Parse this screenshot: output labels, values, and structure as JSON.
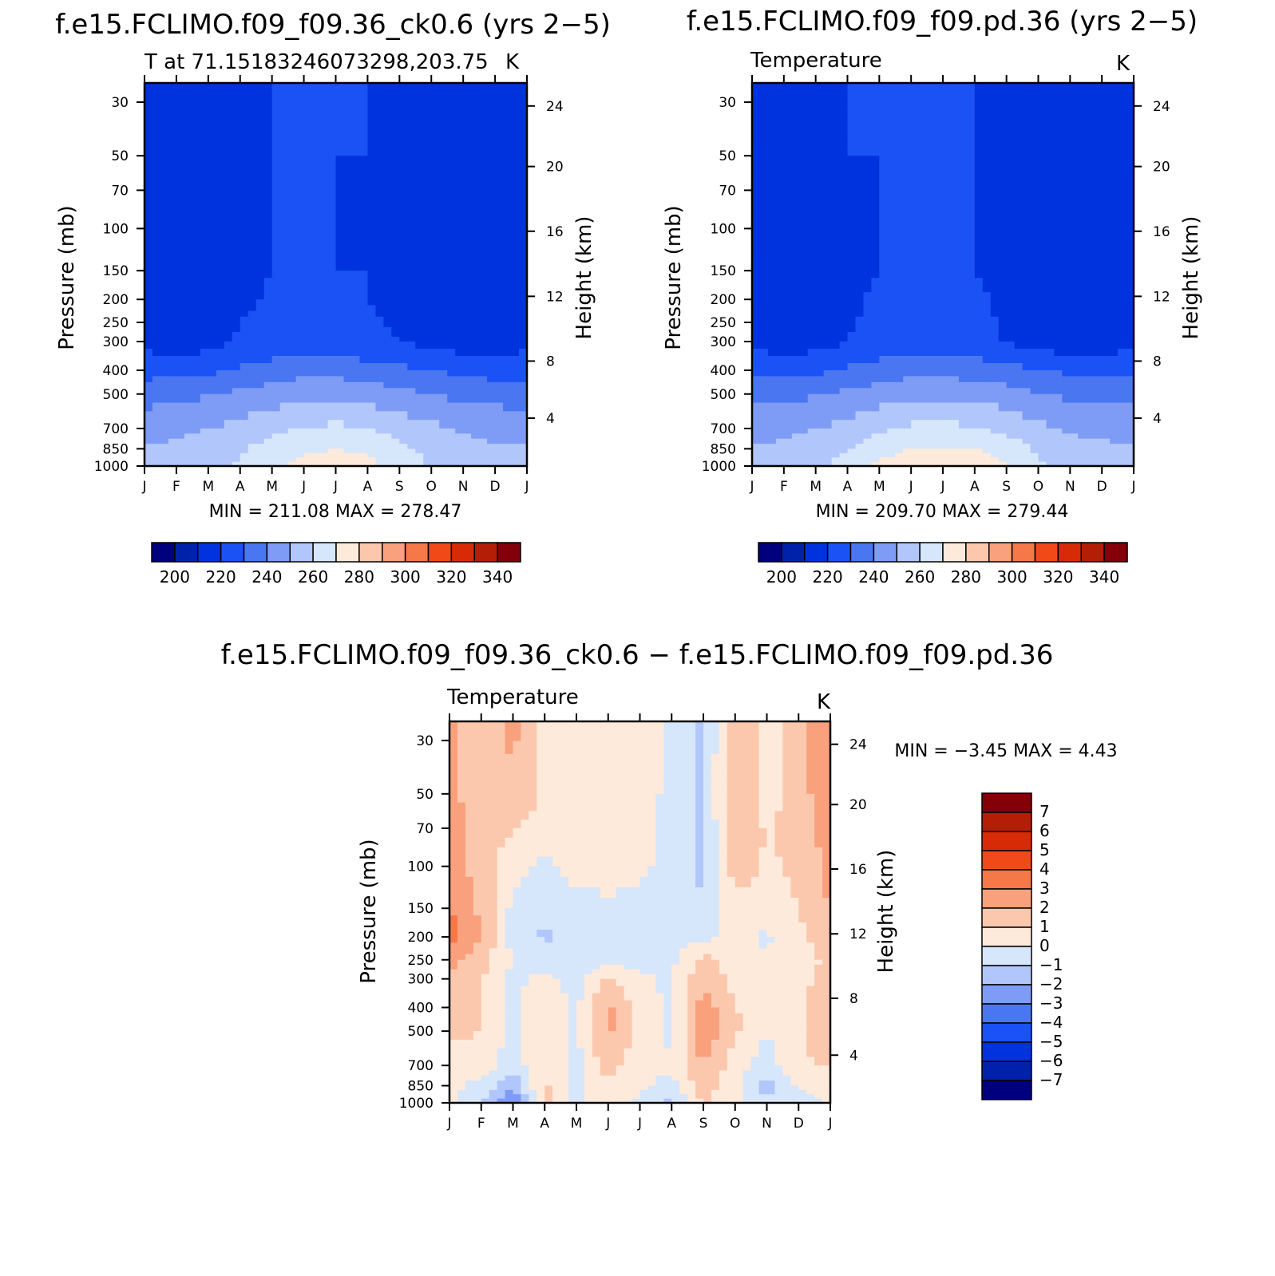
{
  "chart_data": [
    {
      "type": "contour",
      "title": "f.e15.FCLIMO.f09_f09.36_ck0.6 (yrs 2−5)",
      "subtitle_left": "T at 71.15183246073298,203.75",
      "subtitle_right": "K",
      "ylabel": "Pressure (mb)",
      "ylabel_right": "Height (km)",
      "x": [
        "J",
        "F",
        "M",
        "A",
        "M",
        "J",
        "J",
        "A",
        "S",
        "O",
        "N",
        "D",
        "J"
      ],
      "pressure_ticks": [
        30,
        50,
        70,
        100,
        150,
        200,
        250,
        300,
        400,
        500,
        700,
        850,
        1000
      ],
      "height_ticks": [
        4,
        8,
        12,
        16,
        20,
        24
      ],
      "ylim": [
        1000,
        25
      ],
      "minmax_label": "MIN = 211.08 MAX = 278.47",
      "min": 211.08,
      "max": 278.47,
      "levels": [
        200,
        210,
        220,
        230,
        240,
        250,
        260,
        270,
        280,
        290,
        300,
        310,
        320,
        330,
        340
      ],
      "colorbar_labels": [
        "200",
        "220",
        "240",
        "260",
        "280",
        "300",
        "320",
        "340"
      ],
      "palette": [
        "#00007f",
        "#0022aa",
        "#0033dd",
        "#1a52f5",
        "#4a76f2",
        "#7e9cf5",
        "#b1c6fa",
        "#d6e6fb",
        "#feeadb",
        "#fcc8ad",
        "#f9a07c",
        "#f57848",
        "#f04a18",
        "#d92a08",
        "#b41d06",
        "#830008"
      ],
      "field": [
        [
          218,
          212,
          212,
          218,
          220,
          220,
          220,
          220,
          212,
          212,
          212,
          212,
          218
        ],
        [
          218,
          212,
          212,
          218,
          220,
          220,
          220,
          220,
          214,
          212,
          212,
          212,
          218
        ],
        [
          218,
          212,
          212,
          218,
          220,
          220,
          220,
          219,
          214,
          212,
          212,
          212,
          218
        ],
        [
          216,
          212,
          212,
          217,
          220,
          220,
          220,
          219,
          216,
          212,
          212,
          212,
          216
        ],
        [
          216,
          212,
          213,
          218,
          220,
          220,
          220,
          220,
          218,
          214,
          218,
          212,
          216
        ],
        [
          216,
          213,
          213,
          218,
          221,
          221,
          221,
          220,
          218,
          213,
          212,
          212,
          216
        ],
        [
          216,
          213,
          215,
          220,
          222,
          222,
          222,
          221,
          219,
          215,
          213,
          213,
          216
        ],
        [
          217,
          214,
          216,
          221,
          223,
          224,
          224,
          222,
          220,
          216,
          214,
          214,
          217
        ],
        [
          226,
          227,
          228,
          231,
          234,
          236,
          236,
          234,
          232,
          230,
          228,
          226,
          226
        ],
        [
          236,
          237,
          239,
          242,
          245,
          248,
          248,
          246,
          243,
          240,
          237,
          236,
          236
        ],
        [
          246,
          247,
          250,
          253,
          257,
          261,
          262,
          260,
          256,
          252,
          249,
          247,
          246
        ],
        [
          251,
          252,
          255,
          259,
          264,
          268,
          270,
          268,
          263,
          257,
          253,
          251,
          251
        ],
        [
          254,
          254,
          257,
          261,
          268,
          273,
          274,
          273,
          266,
          259,
          255,
          253,
          254
        ]
      ]
    },
    {
      "type": "contour",
      "title": "f.e15.FCLIMO.f09_f09.pd.36 (yrs 2−5)",
      "subtitle_left": "Temperature",
      "subtitle_right": "K",
      "ylabel": "Pressure (mb)",
      "ylabel_right": "Height (km)",
      "x": [
        "J",
        "F",
        "M",
        "A",
        "M",
        "J",
        "J",
        "A",
        "S",
        "O",
        "N",
        "D",
        "J"
      ],
      "pressure_ticks": [
        30,
        50,
        70,
        100,
        150,
        200,
        250,
        300,
        400,
        500,
        700,
        850,
        1000
      ],
      "height_ticks": [
        4,
        8,
        12,
        16,
        20,
        24
      ],
      "ylim": [
        1000,
        25
      ],
      "minmax_label": "MIN = 209.70 MAX = 279.44",
      "min": 209.7,
      "max": 279.44,
      "levels": [
        200,
        210,
        220,
        230,
        240,
        250,
        260,
        270,
        280,
        290,
        300,
        310,
        320,
        330,
        340
      ],
      "colorbar_labels": [
        "200",
        "220",
        "240",
        "260",
        "280",
        "300",
        "320",
        "340"
      ],
      "palette": [
        "#00007f",
        "#0022aa",
        "#0033dd",
        "#1a52f5",
        "#4a76f2",
        "#7e9cf5",
        "#b1c6fa",
        "#d6e6fb",
        "#feeadb",
        "#fcc8ad",
        "#f9a07c",
        "#f57848",
        "#f04a18",
        "#d92a08",
        "#b41d06",
        "#830008"
      ],
      "field": [
        [
          216,
          212,
          212,
          220,
          220,
          220,
          220,
          220,
          216,
          212,
          212,
          212,
          216
        ],
        [
          216,
          212,
          212,
          220,
          220,
          220,
          220,
          220,
          216,
          212,
          212,
          212,
          216
        ],
        [
          216,
          212,
          212,
          219,
          220,
          220,
          220,
          220,
          216,
          212,
          212,
          212,
          216
        ],
        [
          216,
          212,
          213,
          218,
          220,
          220,
          220,
          220,
          217,
          213,
          212,
          212,
          216
        ],
        [
          216,
          212,
          214,
          218,
          220,
          220,
          220,
          220,
          218,
          216,
          213,
          212,
          216
        ],
        [
          216,
          212,
          214,
          219,
          221,
          221,
          221,
          221,
          219,
          215,
          213,
          212,
          216
        ],
        [
          216,
          213,
          215,
          219,
          222,
          222,
          222,
          222,
          219,
          214,
          213,
          213,
          216
        ],
        [
          217,
          214,
          216,
          220,
          223,
          224,
          224,
          223,
          219,
          215,
          214,
          214,
          217
        ],
        [
          227,
          227,
          228,
          231,
          234,
          236,
          236,
          235,
          233,
          230,
          228,
          227,
          227
        ],
        [
          237,
          237,
          239,
          242,
          245,
          248,
          248,
          247,
          244,
          240,
          238,
          237,
          237
        ],
        [
          247,
          247,
          250,
          253,
          258,
          262,
          263,
          261,
          257,
          252,
          249,
          247,
          247
        ],
        [
          251,
          252,
          255,
          260,
          266,
          270,
          271,
          270,
          266,
          258,
          253,
          252,
          251
        ],
        [
          254,
          255,
          258,
          264,
          272,
          276,
          277,
          276,
          271,
          262,
          256,
          254,
          254
        ]
      ]
    },
    {
      "type": "contour",
      "title": "f.e15.FCLIMO.f09_f09.36_ck0.6 − f.e15.FCLIMO.f09_f09.pd.36",
      "subtitle_left": "Temperature",
      "subtitle_right": "K",
      "ylabel": "Pressure (mb)",
      "ylabel_right": "Height (km)",
      "x": [
        "J",
        "F",
        "M",
        "A",
        "M",
        "J",
        "J",
        "A",
        "S",
        "O",
        "N",
        "D",
        "J"
      ],
      "pressure_ticks": [
        30,
        50,
        70,
        100,
        150,
        200,
        250,
        300,
        400,
        500,
        700,
        850,
        1000
      ],
      "height_ticks": [
        4,
        8,
        12,
        16,
        20,
        24
      ],
      "ylim": [
        1000,
        25
      ],
      "minmax_label": "MIN = −3.45 MAX = 4.43",
      "min": -3.45,
      "max": 4.43,
      "levels": [
        -7,
        -6,
        -5,
        -4,
        -3,
        -2,
        -1,
        0,
        1,
        2,
        3,
        4,
        5,
        6,
        7
      ],
      "colorbar_labels": [
        "7",
        "6",
        "5",
        "4",
        "3",
        "2",
        "1",
        "0",
        "−1",
        "−2",
        "−3",
        "−4",
        "−5",
        "−6",
        "−7"
      ],
      "palette": [
        "#00007f",
        "#0022aa",
        "#0033dd",
        "#1a52f5",
        "#4a76f2",
        "#7e9cf5",
        "#b1c6fa",
        "#d6e6fb",
        "#feeadb",
        "#fcc8ad",
        "#f9a07c",
        "#f57848",
        "#f04a18",
        "#d92a08",
        "#b41d06",
        "#830008"
      ],
      "field": [
        [
          2.3,
          1.4,
          2.2,
          0.6,
          0.7,
          0.8,
          0.7,
          -0.2,
          -1.3,
          2.1,
          0.5,
          1.6,
          3.1
        ],
        [
          2.4,
          1.2,
          1.8,
          0.8,
          0.9,
          0.6,
          0.5,
          -0.3,
          -1.2,
          2.2,
          0.6,
          1.5,
          2.9
        ],
        [
          2.7,
          1.5,
          1.1,
          0.6,
          0.7,
          0.5,
          0.4,
          -0.3,
          -1.2,
          1.9,
          0.9,
          1.3,
          2.6
        ],
        [
          2.6,
          1.4,
          0.4,
          -0.2,
          0.4,
          0.6,
          0.3,
          -0.4,
          -1.2,
          1.5,
          0.9,
          1.1,
          2.4
        ],
        [
          3.1,
          1.8,
          -0.3,
          -0.5,
          -0.4,
          -0.3,
          -0.5,
          -0.6,
          -0.9,
          0.7,
          0.8,
          1.0,
          2.0
        ],
        [
          3.4,
          1.9,
          -0.3,
          -1.2,
          -0.5,
          -1.1,
          -0.4,
          -0.5,
          -0.3,
          0.3,
          -0.2,
          0.8,
          1.6
        ],
        [
          2.2,
          1.6,
          -0.2,
          -0.4,
          -0.6,
          -0.4,
          -0.4,
          -0.2,
          1.3,
          0.4,
          0.1,
          0.6,
          1.2
        ],
        [
          1.9,
          1.1,
          -0.2,
          0.2,
          -0.4,
          1.3,
          0.2,
          -0.2,
          1.8,
          0.6,
          0.2,
          0.7,
          1.4
        ],
        [
          1.6,
          1.1,
          -0.3,
          1.1,
          -0.2,
          2.2,
          0.6,
          -0.3,
          2.6,
          1.1,
          0.2,
          0.8,
          1.5
        ],
        [
          1.5,
          1.0,
          -0.3,
          1.0,
          -0.2,
          2.2,
          0.6,
          -0.3,
          2.8,
          1.2,
          0.1,
          0.9,
          1.6
        ],
        [
          0.2,
          0.5,
          -0.5,
          0.8,
          -0.3,
          1.6,
          0.2,
          0.3,
          2.0,
          0.5,
          -0.6,
          0.9,
          1.0
        ],
        [
          0.3,
          -0.3,
          -1.8,
          1.2,
          -0.3,
          0.5,
          0.2,
          -0.4,
          1.6,
          0.2,
          -1.5,
          0.2,
          0.6
        ],
        [
          0.2,
          -0.8,
          -3.4,
          1.6,
          -0.4,
          1.0,
          -0.3,
          -1.3,
          1.2,
          0.3,
          -0.8,
          -0.8,
          0.2
        ]
      ]
    }
  ]
}
